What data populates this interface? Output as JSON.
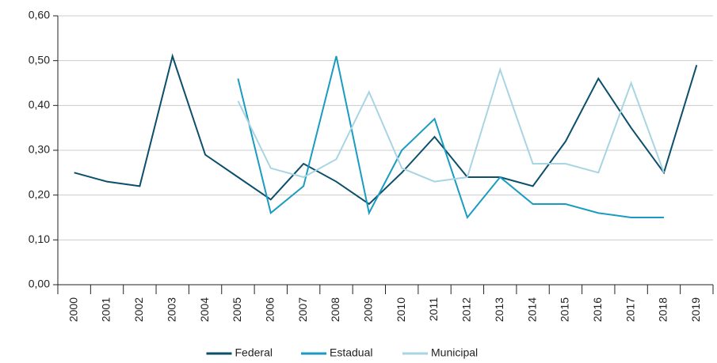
{
  "chart_data": {
    "type": "line",
    "categories": [
      "2000",
      "2001",
      "2002",
      "2003",
      "2004",
      "2005",
      "2006",
      "2007",
      "2008",
      "2009",
      "2010",
      "2011",
      "2012",
      "2013",
      "2014",
      "2015",
      "2016",
      "2017",
      "2018",
      "2019"
    ],
    "series": [
      {
        "name": "Federal",
        "color": "#0b4f6c",
        "values": [
          0.25,
          0.23,
          0.22,
          0.51,
          0.29,
          0.24,
          0.19,
          0.27,
          0.23,
          0.18,
          0.25,
          0.33,
          0.24,
          0.24,
          0.22,
          0.32,
          0.46,
          0.35,
          0.25,
          0.49
        ]
      },
      {
        "name": "Estadual",
        "color": "#1a9bc1",
        "values": [
          null,
          null,
          null,
          null,
          null,
          0.46,
          0.16,
          0.22,
          0.51,
          0.16,
          0.3,
          0.37,
          0.15,
          0.24,
          0.18,
          0.18,
          0.16,
          0.15,
          0.15,
          null
        ]
      },
      {
        "name": "Municipal",
        "color": "#a8d5e2",
        "values": [
          null,
          null,
          null,
          null,
          null,
          0.41,
          0.26,
          0.24,
          0.28,
          0.43,
          0.26,
          0.23,
          0.24,
          0.48,
          0.27,
          0.27,
          0.25,
          0.45,
          0.25,
          null
        ]
      }
    ],
    "ylim": [
      0,
      0.6
    ],
    "yticks": [
      {
        "value": 0,
        "label": "0,00"
      },
      {
        "value": 0.1,
        "label": "0,10"
      },
      {
        "value": 0.2,
        "label": "0,20"
      },
      {
        "value": 0.3,
        "label": "0,30"
      },
      {
        "value": 0.4,
        "label": "0,40"
      },
      {
        "value": 0.5,
        "label": "0,50"
      },
      {
        "value": 0.6,
        "label": "0,60"
      }
    ],
    "grid": true,
    "legend": "bottom"
  }
}
